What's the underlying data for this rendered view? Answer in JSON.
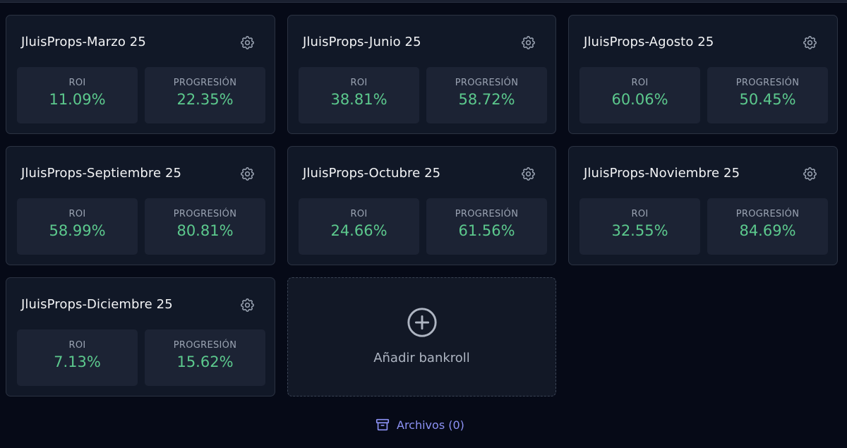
{
  "cards": [
    {
      "title": "JluisProps-Marzo 25",
      "roi_label": "ROI",
      "roi": "11.09%",
      "progress_label": "PROGRESIÓN",
      "progress": "22.35%"
    },
    {
      "title": "JluisProps-Junio 25",
      "roi_label": "ROI",
      "roi": "38.81%",
      "progress_label": "PROGRESIÓN",
      "progress": "58.72%"
    },
    {
      "title": "JluisProps-Agosto 25",
      "roi_label": "ROI",
      "roi": "60.06%",
      "progress_label": "PROGRESIÓN",
      "progress": "50.45%"
    },
    {
      "title": "JluisProps-Septiembre 25",
      "roi_label": "ROI",
      "roi": "58.99%",
      "progress_label": "PROGRESIÓN",
      "progress": "80.81%"
    },
    {
      "title": "JluisProps-Octubre 25",
      "roi_label": "ROI",
      "roi": "24.66%",
      "progress_label": "PROGRESIÓN",
      "progress": "61.56%"
    },
    {
      "title": "JluisProps-Noviembre 25",
      "roi_label": "ROI",
      "roi": "32.55%",
      "progress_label": "PROGRESIÓN",
      "progress": "84.69%"
    },
    {
      "title": "JluisProps-Diciembre 25",
      "roi_label": "ROI",
      "roi": "7.13%",
      "progress_label": "PROGRESIÓN",
      "progress": "15.62%"
    }
  ],
  "add_bankroll": {
    "label": "Añadir bankroll",
    "icon": "plus-circle-icon"
  },
  "archive": {
    "label": "Archivos (0)",
    "icon": "archive-box-icon"
  },
  "settings_icon": "gear-icon",
  "colors": {
    "background": "#060a17",
    "card": "#111827",
    "stat_box": "#1c2334",
    "value_green": "#5cc98d",
    "archive_link": "#8c92f5"
  }
}
